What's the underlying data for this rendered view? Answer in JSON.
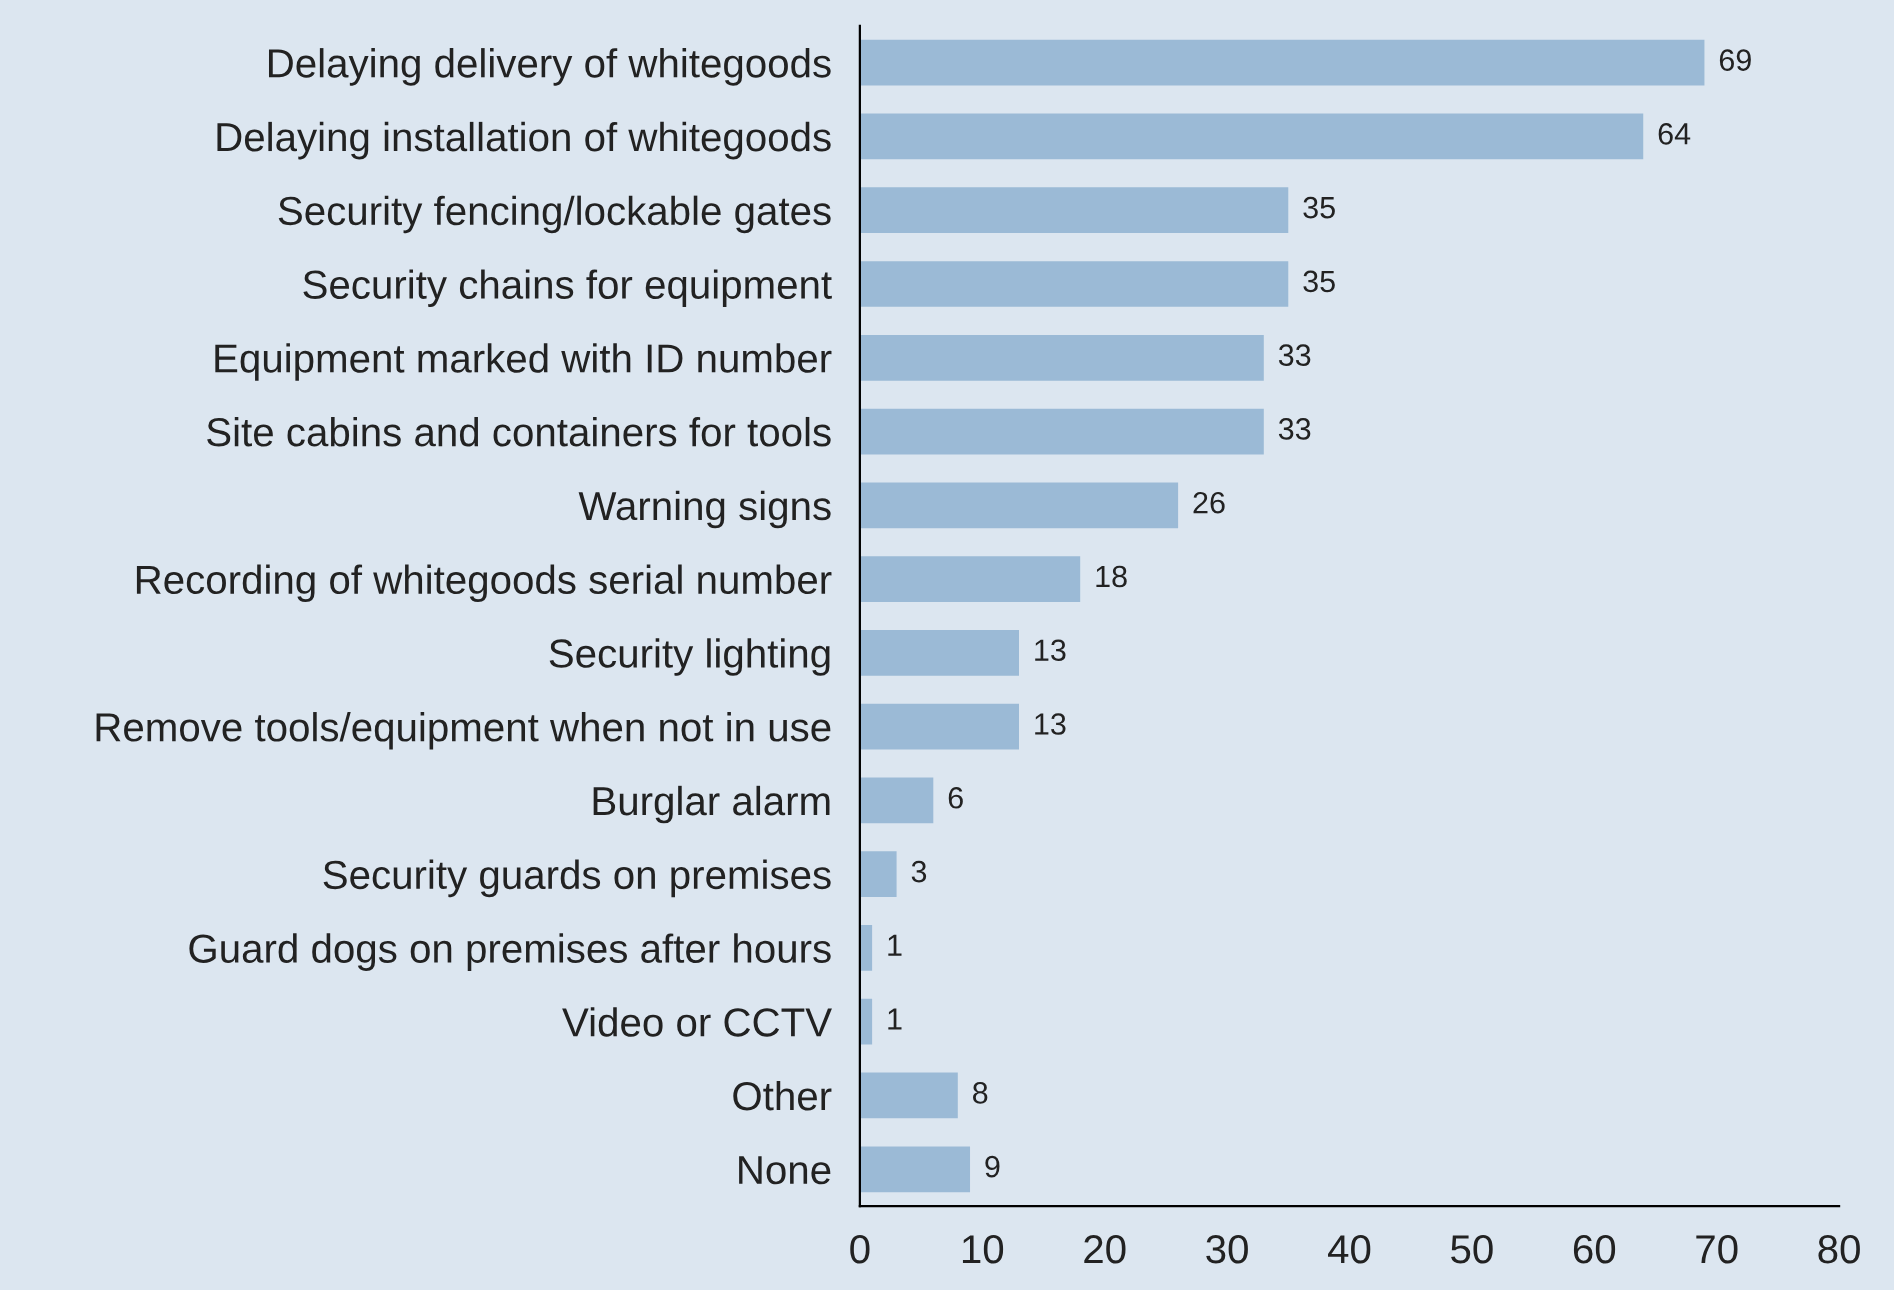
{
  "chart_data": {
    "type": "bar",
    "orientation": "horizontal",
    "categories": [
      "Delaying delivery of whitegoods",
      "Delaying installation of whitegoods",
      "Security fencing/lockable gates",
      "Security chains for equipment",
      "Equipment marked with ID number",
      "Site cabins and containers for tools",
      "Warning signs",
      "Recording of whitegoods serial number",
      "Security lighting",
      "Remove tools/equipment when not in use",
      "Burglar alarm",
      "Security guards on premises",
      "Guard dogs on premises after hours",
      "Video or CCTV",
      "Other",
      "None"
    ],
    "values": [
      69,
      64,
      35,
      35,
      33,
      33,
      26,
      18,
      13,
      13,
      6,
      3,
      1,
      1,
      8,
      9
    ],
    "color": "#9bbad6",
    "xlim": [
      0,
      80
    ],
    "xticks": [
      0,
      10,
      20,
      30,
      40,
      50,
      60,
      70,
      80
    ],
    "data_labels": true,
    "grid": false
  }
}
